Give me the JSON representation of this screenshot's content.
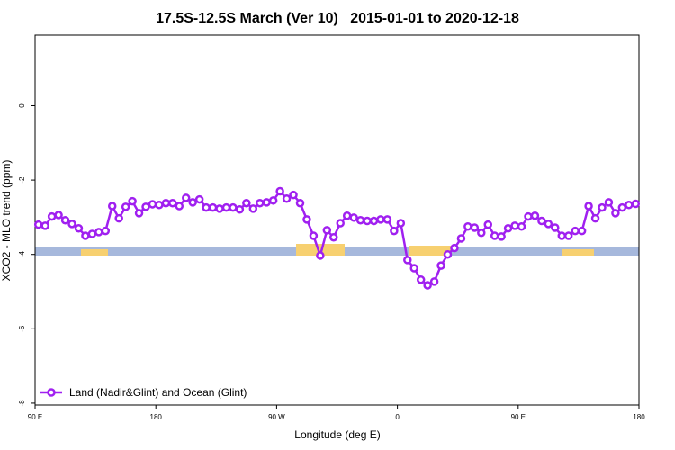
{
  "chart_data": {
    "type": "line",
    "title": "17.5S-12.5S March (Ver 10)   2015-01-01 to 2020-12-18",
    "x_label": "Longitude (deg E)",
    "y_label": "XCO2 - MLO trend (ppm)",
    "x": [
      92.5,
      97.5,
      102.5,
      107.5,
      112.5,
      117.5,
      122.5,
      127.5,
      132.5,
      137.5,
      142.5,
      147.5,
      152.5,
      157.5,
      162.5,
      167.5,
      172.5,
      177.5,
      182.5,
      187.5,
      192.5,
      197.5,
      202.5,
      207.5,
      212.5,
      217.5,
      222.5,
      227.5,
      232.5,
      237.5,
      242.5,
      247.5,
      252.5,
      257.5,
      262.5,
      267.5,
      272.5,
      277.5,
      282.5,
      287.5,
      292.5,
      297.5,
      302.5,
      307.5,
      312.5,
      317.5,
      322.5,
      327.5,
      332.5,
      337.5,
      342.5,
      347.5,
      352.5,
      357.5,
      362.5,
      367.5,
      372.5,
      377.5,
      382.5,
      387.5,
      392.5,
      397.5,
      402.5,
      407.5,
      412.5,
      417.5,
      422.5,
      427.5,
      432.5,
      437.5,
      442.5,
      447.5,
      452.5,
      457.5,
      462.5,
      467.5,
      472.5,
      477.5,
      482.5,
      487.5,
      492.5,
      497.5,
      502.5,
      507.5,
      512.5,
      517.5,
      522.5,
      527.5,
      532.5,
      537.5
    ],
    "series": [
      {
        "name": "Land (Nadir&Glint) and Ocean (Glint)",
        "color": "#a020f0",
        "values": [
          -3.2,
          -3.23,
          -2.98,
          -2.94,
          -3.08,
          -3.18,
          -3.3,
          -3.5,
          -3.45,
          -3.4,
          -3.37,
          -2.7,
          -3.03,
          -2.72,
          -2.57,
          -2.89,
          -2.72,
          -2.65,
          -2.67,
          -2.62,
          -2.62,
          -2.7,
          -2.48,
          -2.6,
          -2.52,
          -2.74,
          -2.74,
          -2.77,
          -2.74,
          -2.74,
          -2.79,
          -2.62,
          -2.77,
          -2.62,
          -2.6,
          -2.55,
          -2.3,
          -2.5,
          -2.4,
          -2.62,
          -3.06,
          -3.5,
          -4.03,
          -3.35,
          -3.54,
          -3.16,
          -2.96,
          -3.01,
          -3.08,
          -3.1,
          -3.1,
          -3.06,
          -3.06,
          -3.37,
          -3.16,
          -4.15,
          -4.37,
          -4.68,
          -4.83,
          -4.73,
          -4.3,
          -4.0,
          -3.83,
          -3.57,
          -3.25,
          -3.28,
          -3.42,
          -3.2,
          -3.5,
          -3.52,
          -3.3,
          -3.23,
          -3.25,
          -2.98,
          -2.96,
          -3.1,
          -3.18,
          -3.28,
          -3.5,
          -3.5,
          -3.37,
          -3.37,
          -2.7,
          -3.03,
          -2.74,
          -2.6,
          -2.89,
          -2.74,
          -2.67,
          -2.64
        ]
      }
    ],
    "xlim": [
      90,
      540
    ],
    "ylim": [
      -8.05,
      1.9
    ],
    "xticks": [
      {
        "value": 90,
        "label": "90 E"
      },
      {
        "value": 180,
        "label": "180"
      },
      {
        "value": 270,
        "label": "90 W"
      },
      {
        "value": 360,
        "label": "0"
      },
      {
        "value": 450,
        "label": "90 E"
      },
      {
        "value": 540,
        "label": "180"
      }
    ],
    "yticks": [
      0,
      -2,
      -4,
      -6,
      -8
    ],
    "legend": "bottom-left"
  }
}
